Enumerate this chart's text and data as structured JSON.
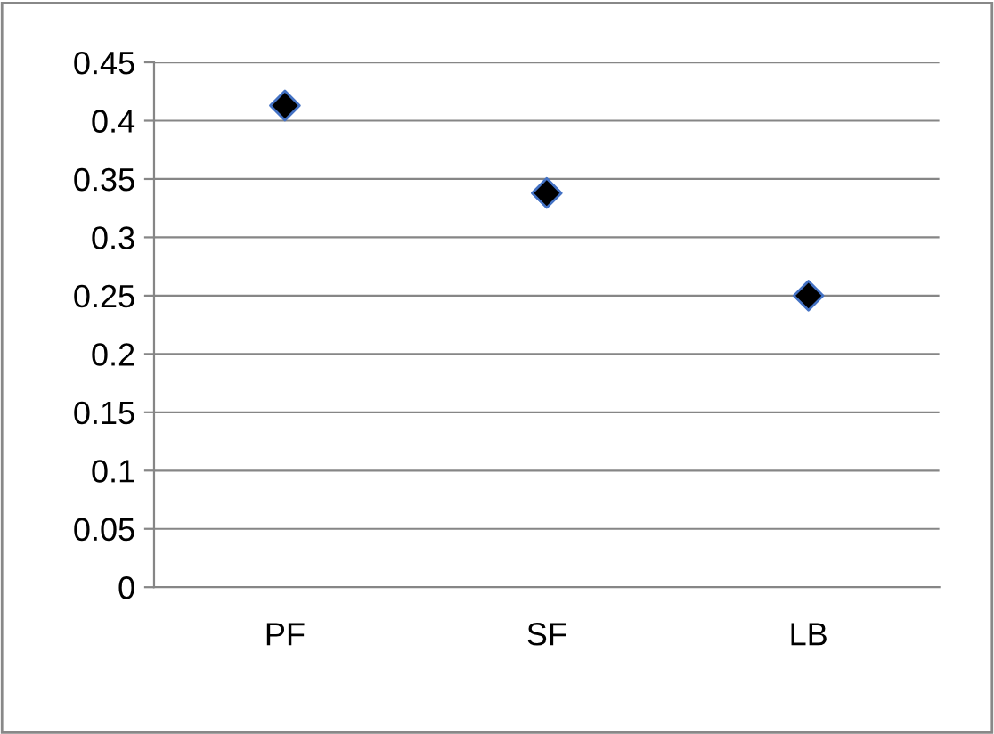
{
  "chart_data": {
    "type": "scatter",
    "categories": [
      "PF",
      "SF",
      "LB"
    ],
    "values": [
      0.413,
      0.338,
      0.25
    ],
    "color": "#000000",
    "marker": "diamond",
    "ylim": [
      0,
      0.45
    ],
    "yticks": [
      0,
      0.05,
      0.1,
      0.15,
      0.2,
      0.25,
      0.3,
      0.35,
      0.4,
      0.45
    ],
    "grid": "y",
    "legend": false
  }
}
